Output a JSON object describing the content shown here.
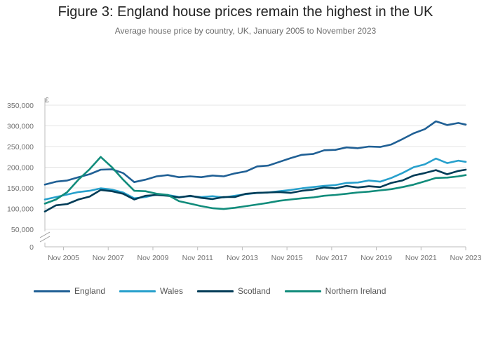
{
  "title": "Figure 3: England house prices remain the highest in the UK",
  "subtitle": "Average house price by country, UK, January 2005 to November 2023",
  "chart_data": {
    "type": "line",
    "ylabel": "£",
    "xlabel": "",
    "x_start": "2005-01",
    "x_end": "2023-11",
    "ylim": [
      0,
      350000
    ],
    "y_break": true,
    "grid": true,
    "legend_position": "bottom",
    "yticks": [
      "0",
      "50,000",
      "100,000",
      "150,000",
      "200,000",
      "250,000",
      "300,000",
      "350,000"
    ],
    "xticks": [
      "Nov 2005",
      "Nov 2007",
      "Nov 2009",
      "Nov 2011",
      "Nov 2013",
      "Nov 2015",
      "Nov 2017",
      "Nov 2019",
      "Nov 2021",
      "Nov 2023"
    ],
    "x": [
      "Jan 2005",
      "Jul 2005",
      "Jan 2006",
      "Jul 2006",
      "Jan 2007",
      "Jul 2007",
      "Jan 2008",
      "Jul 2008",
      "Jan 2009",
      "Jul 2009",
      "Jan 2010",
      "Jul 2010",
      "Jan 2011",
      "Jul 2011",
      "Jan 2012",
      "Jul 2012",
      "Jan 2013",
      "Jul 2013",
      "Jan 2014",
      "Jul 2014",
      "Jan 2015",
      "Jul 2015",
      "Jan 2016",
      "Jul 2016",
      "Jan 2017",
      "Jul 2017",
      "Jan 2018",
      "Jul 2018",
      "Jan 2019",
      "Jul 2019",
      "Jan 2020",
      "Jul 2020",
      "Jan 2021",
      "Jul 2021",
      "Jan 2022",
      "Jul 2022",
      "Jan 2023",
      "Jul 2023",
      "Nov 2023"
    ],
    "series": [
      {
        "name": "England",
        "color": "#206095",
        "values": [
          158000,
          165000,
          168000,
          176000,
          183000,
          194000,
          195000,
          186000,
          164000,
          170000,
          178000,
          181000,
          176000,
          178000,
          176000,
          180000,
          178000,
          185000,
          190000,
          202000,
          204000,
          213000,
          222000,
          230000,
          232000,
          241000,
          242000,
          248000,
          246000,
          250000,
          249000,
          255000,
          268000,
          282000,
          292000,
          311000,
          302000,
          307000,
          303000
        ]
      },
      {
        "name": "Wales",
        "color": "#27a0cc",
        "values": [
          122000,
          128000,
          134000,
          140000,
          143000,
          149000,
          146000,
          139000,
          125000,
          128000,
          134000,
          133000,
          128000,
          130000,
          128000,
          130000,
          127000,
          131000,
          135000,
          138000,
          139000,
          142000,
          145000,
          149000,
          152000,
          155000,
          157000,
          162000,
          163000,
          168000,
          165000,
          174000,
          186000,
          200000,
          207000,
          221000,
          210000,
          216000,
          213000
        ]
      },
      {
        "name": "Scotland",
        "color": "#003c57",
        "values": [
          93000,
          108000,
          111000,
          122000,
          129000,
          145000,
          142000,
          136000,
          122000,
          131000,
          133000,
          131000,
          127000,
          131000,
          126000,
          123000,
          128000,
          128000,
          136000,
          138000,
          139000,
          140000,
          138000,
          143000,
          146000,
          151000,
          149000,
          155000,
          151000,
          154000,
          152000,
          162000,
          168000,
          180000,
          186000,
          193000,
          183000,
          191000,
          194000
        ]
      },
      {
        "name": "Northern Ireland",
        "color": "#118c7b",
        "values": [
          112000,
          122000,
          140000,
          170000,
          195000,
          225000,
          200000,
          170000,
          143000,
          142000,
          136000,
          133000,
          118000,
          112000,
          106000,
          101000,
          99000,
          102000,
          106000,
          110000,
          114000,
          119000,
          122000,
          125000,
          127000,
          131000,
          133000,
          136000,
          139000,
          141000,
          144000,
          147000,
          152000,
          158000,
          166000,
          174000,
          175000,
          178000,
          181000
        ]
      }
    ]
  }
}
